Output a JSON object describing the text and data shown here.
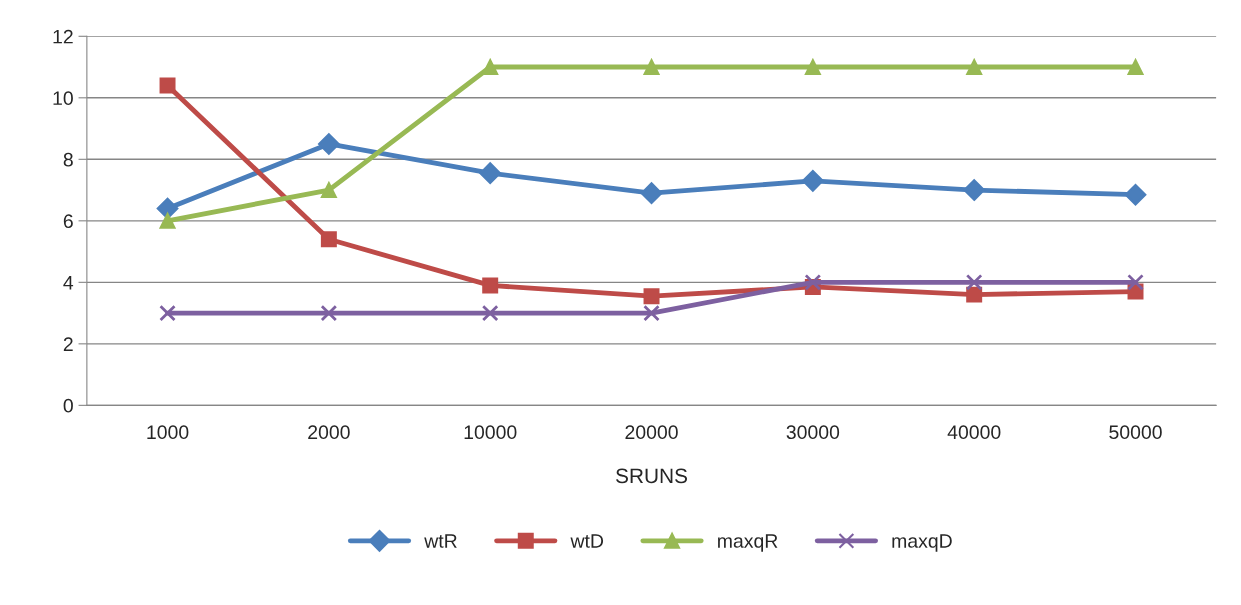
{
  "chart_data": {
    "type": "line",
    "xlabel": "SRUNS",
    "categories": [
      "1000",
      "2000",
      "10000",
      "20000",
      "30000",
      "40000",
      "50000"
    ],
    "series": [
      {
        "name": "wtR",
        "color": "#4a7ebb",
        "marker": "diamond",
        "values": [
          6.4,
          8.5,
          7.55,
          6.9,
          7.3,
          7.0,
          6.85
        ]
      },
      {
        "name": "wtD",
        "color": "#be4b48",
        "marker": "square",
        "values": [
          10.4,
          5.4,
          3.9,
          3.55,
          3.85,
          3.6,
          3.7
        ]
      },
      {
        "name": "maxqR",
        "color": "#98b954",
        "marker": "triangle",
        "values": [
          6,
          7,
          11,
          11,
          11,
          11,
          11
        ]
      },
      {
        "name": "maxqD",
        "color": "#7d60a0",
        "marker": "cross",
        "values": [
          3,
          3,
          3,
          3,
          4,
          4,
          4
        ]
      }
    ],
    "ylim": [
      0,
      12
    ],
    "yticks": [
      0,
      2,
      4,
      6,
      8,
      10,
      12
    ],
    "grid": "y",
    "legend": "bottom",
    "line_style": "solid"
  }
}
